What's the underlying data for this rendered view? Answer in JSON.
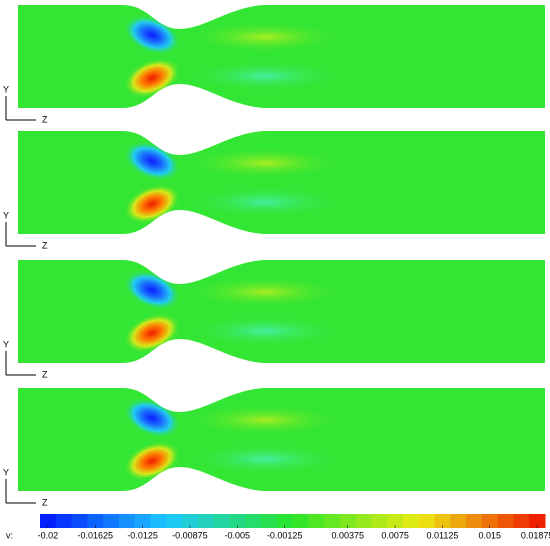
{
  "chart_data": {
    "type": "contour",
    "panels": [
      {
        "y_label": "Y",
        "x_label": "Z"
      },
      {
        "y_label": "Y",
        "x_label": "Z"
      },
      {
        "y_label": "Y",
        "x_label": "Z"
      },
      {
        "y_label": "Y",
        "x_label": "Z"
      }
    ],
    "colorbar_label": "v:",
    "clim": [
      -0.020625,
      0.019375
    ],
    "level_step": 0.00125,
    "cticks": [
      -0.02,
      -0.01625,
      -0.0125,
      -0.00875,
      -0.005,
      -0.00125,
      0.00375,
      0.0075,
      0.01125,
      0.015,
      0.01875
    ]
  }
}
